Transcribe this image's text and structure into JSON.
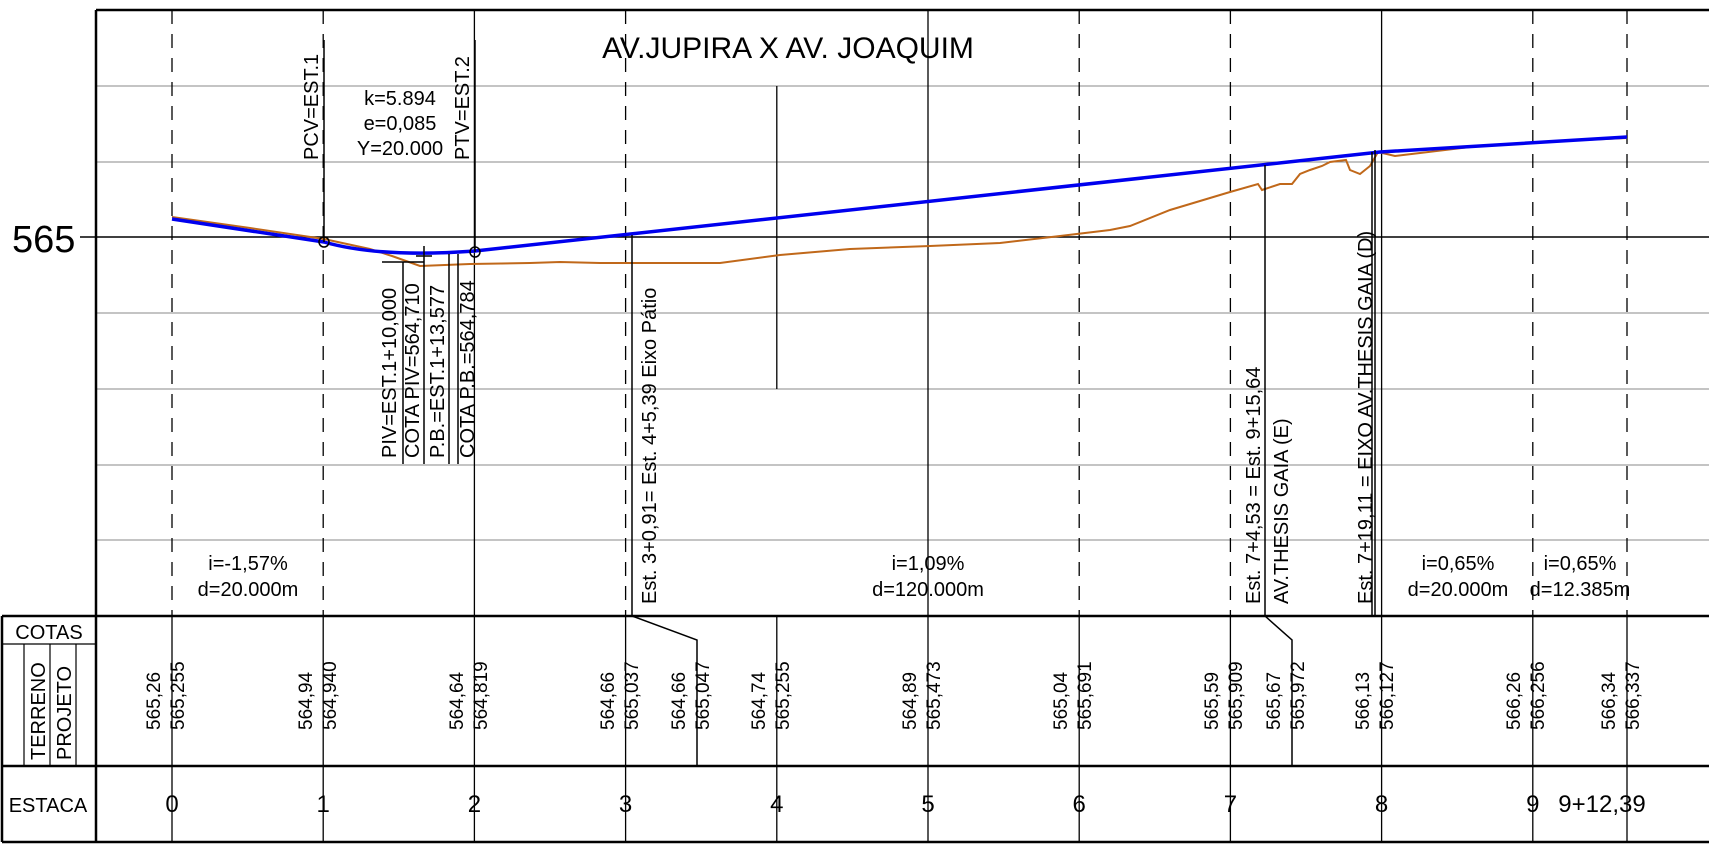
{
  "title": "AV.JUPIRA X AV. JOAQUIM",
  "elevation_label": "565",
  "curve_params": [
    "k=5.894",
    "e=0,085",
    "Y=20.000"
  ],
  "vertical_markers": [
    "PCV=EST.1",
    "PTV=EST.2"
  ],
  "piv_notes": [
    "PIV=EST.1+10,000",
    "COTA PIV=564,710",
    "P.B.=EST.1+13,577",
    "COTA P.B.=564,784"
  ],
  "station_notes": [
    "Est. 3+0,91= Est. 4+5,39 Eixo Pátio",
    "Est. 7+4,53 = Est. 9+15,64",
    "AV.THESIS GAIA (E)",
    "Est. 7+19,11 = EIXO AV.THESIS GAIA (D)"
  ],
  "grades": [
    {
      "i": "i=-1,57%",
      "d": "d=20.000m"
    },
    {
      "i": "i=1,09%",
      "d": "d=120.000m"
    },
    {
      "i": "i=0,65%",
      "d": "d=20.000m"
    },
    {
      "i": "i=0,65%",
      "d": "d=12.385m"
    }
  ],
  "table": {
    "cotas_label": "COTAS",
    "terreno_label": "TERRENO",
    "projeto_label": "PROJETO",
    "estaca_label": "ESTACA",
    "columns": [
      {
        "terreno": "565,26",
        "projeto": "565,255"
      },
      {
        "terreno": "564,94",
        "projeto": "564,940"
      },
      {
        "terreno": "564,64",
        "projeto": "564,819"
      },
      {
        "terreno": "564,66",
        "projeto": "565,037"
      },
      {
        "terreno": "564,66",
        "projeto": "565,047"
      },
      {
        "terreno": "564,74",
        "projeto": "565,255"
      },
      {
        "terreno": "564,89",
        "projeto": "565,473"
      },
      {
        "terreno": "565,04",
        "projeto": "565,691"
      },
      {
        "terreno": "565,59",
        "projeto": "565,909"
      },
      {
        "terreno": "565,67",
        "projeto": "565,972"
      },
      {
        "terreno": "566,13",
        "projeto": "566,127"
      },
      {
        "terreno": "566,26",
        "projeto": "566,256"
      },
      {
        "terreno": "566,34",
        "projeto": "566,337"
      }
    ],
    "estacas": [
      "0",
      "1",
      "2",
      "3",
      "4",
      "5",
      "6",
      "7",
      "8",
      "9",
      "9+12,39"
    ]
  },
  "colors": {
    "projeto": "#0000ee",
    "terreno": "#c0681a",
    "line": "#000000",
    "grid": "#888888"
  }
}
